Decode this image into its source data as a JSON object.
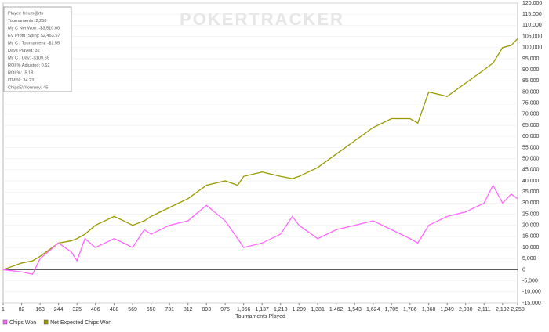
{
  "chart_data": {
    "type": "line",
    "watermark": "POKERTRACKER",
    "stats": [
      "Player: freum@rts",
      "Tournaments: 2,258",
      "My C Net Won: -$3,510.00",
      "EV Profit (Spin): $2,463.57",
      "My C / Tournament: -$1.55",
      "Days Played: 32",
      "My C / Day: -$109.69",
      "ROI % Adjusted: 0.62",
      "ROI %: -5.18",
      "ITM %: 34.23",
      "ChipsEV/tourney: 45"
    ],
    "x_label": "Tournaments Played",
    "x": [
      1,
      82,
      130,
      163,
      244,
      300,
      325,
      360,
      406,
      488,
      530,
      569,
      620,
      650,
      731,
      812,
      893,
      975,
      1030,
      1056,
      1137,
      1218,
      1270,
      1299,
      1381,
      1462,
      1543,
      1624,
      1705,
      1786,
      1820,
      1868,
      1949,
      2030,
      2111,
      2150,
      2192,
      2230,
      2258
    ],
    "series": [
      {
        "name": "Chips Won",
        "color": "#ff66ff",
        "values": [
          0,
          -1000,
          -2000,
          5000,
          12000,
          8000,
          4000,
          14000,
          10000,
          14000,
          12000,
          10000,
          18000,
          16000,
          20000,
          22000,
          29000,
          22000,
          14000,
          10000,
          12000,
          16000,
          24000,
          20000,
          14000,
          18000,
          20000,
          22000,
          18000,
          14000,
          12000,
          20000,
          24000,
          26000,
          30000,
          38000,
          30000,
          34000,
          32000
        ]
      },
      {
        "name": "Net Expected Chips Won",
        "color": "#999900",
        "values": [
          0,
          3000,
          4000,
          6000,
          12000,
          13000,
          14000,
          16000,
          20000,
          24000,
          22000,
          20000,
          22000,
          24000,
          28000,
          32000,
          38000,
          40000,
          38000,
          42000,
          44000,
          42000,
          41000,
          42000,
          46000,
          52000,
          58000,
          64000,
          68000,
          68000,
          66000,
          80000,
          78000,
          84000,
          90000,
          93000,
          100000,
          101000,
          104000
        ]
      }
    ],
    "xlim": [
      1,
      2258
    ],
    "xticks": [
      1,
      82,
      163,
      244,
      325,
      406,
      488,
      569,
      650,
      731,
      812,
      893,
      975,
      {
        "value": 1056,
        "label": "1,056"
      },
      {
        "value": 1137,
        "label": "1,137"
      },
      {
        "value": 1218,
        "label": "1,218"
      },
      {
        "value": 1299,
        "label": "1,299"
      },
      {
        "value": 1381,
        "label": "1,381"
      },
      {
        "value": 1462,
        "label": "1,462"
      },
      {
        "value": 1543,
        "label": "1,543"
      },
      {
        "value": 1624,
        "label": "1,624"
      },
      {
        "value": 1705,
        "label": "1,705"
      },
      {
        "value": 1786,
        "label": "1,786"
      },
      {
        "value": 1868,
        "label": "1,868"
      },
      {
        "value": 1949,
        "label": "1,949"
      },
      {
        "value": 2030,
        "label": "2,030"
      },
      {
        "value": 2111,
        "label": "2,111"
      },
      {
        "value": 2192,
        "label": "2,192"
      },
      {
        "value": 2258,
        "label": "2,258"
      }
    ],
    "ylim": [
      -15000,
      120000
    ],
    "yticks": [
      {
        "value": -15000,
        "label": "-15,000"
      },
      {
        "value": -10000,
        "label": "-10,000"
      },
      {
        "value": -5000,
        "label": "-5,000"
      },
      0,
      {
        "value": 5000,
        "label": "5,000"
      },
      {
        "value": 10000,
        "label": "10,000"
      },
      {
        "value": 15000,
        "label": "15,000"
      },
      {
        "value": 20000,
        "label": "20,000"
      },
      {
        "value": 25000,
        "label": "25,000"
      },
      {
        "value": 30000,
        "label": "30,000"
      },
      {
        "value": 35000,
        "label": "35,000"
      },
      {
        "value": 40000,
        "label": "40,000"
      },
      {
        "value": 45000,
        "label": "45,000"
      },
      {
        "value": 50000,
        "label": "50,000"
      },
      {
        "value": 55000,
        "label": "55,000"
      },
      {
        "value": 60000,
        "label": "60,000"
      },
      {
        "value": 65000,
        "label": "65,000"
      },
      {
        "value": 70000,
        "label": "70,000"
      },
      {
        "value": 75000,
        "label": "75,000"
      },
      {
        "value": 80000,
        "label": "80,000"
      },
      {
        "value": 85000,
        "label": "85,000"
      },
      {
        "value": 90000,
        "label": "90,000"
      },
      {
        "value": 95000,
        "label": "95,000"
      },
      {
        "value": 100000,
        "label": "100,000"
      },
      {
        "value": 105000,
        "label": "105,000"
      },
      {
        "value": 110000,
        "label": "110,000"
      },
      {
        "value": 115000,
        "label": "115,000"
      },
      {
        "value": 120000,
        "label": "120,000"
      }
    ],
    "grid": true
  }
}
